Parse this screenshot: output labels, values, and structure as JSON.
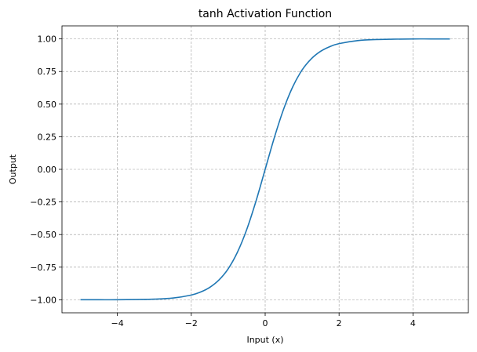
{
  "chart_data": {
    "type": "line",
    "title": "tanh Activation Function",
    "xlabel": "Input (x)",
    "ylabel": "Output",
    "xlim": [
      -5.5,
      5.5
    ],
    "ylim": [
      -1.1,
      1.1
    ],
    "x_ticks": [
      -4,
      -2,
      0,
      2,
      4
    ],
    "x_tick_labels": [
      "−4",
      "−2",
      "0",
      "2",
      "4"
    ],
    "y_ticks": [
      -1.0,
      -0.75,
      -0.5,
      -0.25,
      0.0,
      0.25,
      0.5,
      0.75,
      1.0
    ],
    "y_tick_labels": [
      "−1.00",
      "−0.75",
      "−0.50",
      "−0.25",
      "0.00",
      "0.25",
      "0.50",
      "0.75",
      "1.00"
    ],
    "grid": true,
    "series": [
      {
        "color": "#1f77b4",
        "x": [
          -5,
          -4.5,
          -4,
          -3.5,
          -3,
          -2.5,
          -2,
          -1.75,
          -1.5,
          -1.25,
          -1,
          -0.75,
          -0.5,
          -0.25,
          0,
          0.25,
          0.5,
          0.75,
          1,
          1.25,
          1.5,
          1.75,
          2,
          2.5,
          3,
          3.5,
          4,
          4.5,
          5
        ],
        "y": [
          -1.0,
          -1.0,
          -1.0,
          -0.998,
          -0.995,
          -0.987,
          -0.964,
          -0.941,
          -0.905,
          -0.848,
          -0.762,
          -0.635,
          -0.462,
          -0.245,
          0.0,
          0.245,
          0.462,
          0.635,
          0.762,
          0.848,
          0.905,
          0.941,
          0.964,
          0.987,
          0.995,
          0.998,
          1.0,
          1.0,
          1.0
        ]
      }
    ]
  }
}
